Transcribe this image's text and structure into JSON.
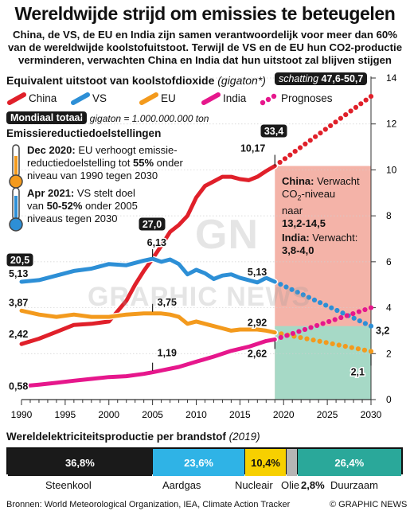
{
  "header": {
    "title": "Wereldwijde strijd om emissies te beteugelen",
    "subtitle_lines": [
      "China, de VS, de EU en India zijn samen verantwoordelijk voor meer dan 60%",
      "van de wereldwijde koolstofuitstoot. Terwijl de VS en de EU hun CO2-productie",
      "verminderen, verwachten China en India dat hun uitstoot zal blijven stijgen"
    ]
  },
  "chart_data": {
    "type": "line",
    "title": "Equivalent uitstoot van koolstofdioxide",
    "title_unit": "(gigaton*)",
    "note": "*1 gigaton = 1.000.000.000 ton",
    "world_total_label": "Mondiaal totaal",
    "estimate_label": "schatting",
    "estimate_value": "47,6-50,7",
    "xlim": [
      1990,
      2030
    ],
    "ylim": [
      0,
      14
    ],
    "x_ticks": [
      1990,
      1995,
      2000,
      2005,
      2010,
      2015,
      2020,
      2025,
      2030
    ],
    "y_ticks": [
      0,
      2,
      4,
      6,
      8,
      10,
      12,
      14
    ],
    "legend": [
      "China",
      "VS",
      "EU",
      "India",
      "Prognoses"
    ],
    "series": [
      {
        "name": "China",
        "color": "#e0202a",
        "x": [
          1990,
          1992,
          1994,
          1996,
          1998,
          2000,
          2002,
          2003,
          2004,
          2005,
          2006,
          2007,
          2008,
          2009,
          2010,
          2011,
          2012,
          2013,
          2014,
          2015,
          2016,
          2017,
          2018,
          2019
        ],
        "y": [
          2.42,
          2.65,
          2.95,
          3.25,
          3.3,
          3.4,
          4.3,
          5.0,
          5.6,
          6.13,
          6.7,
          7.3,
          7.6,
          8.0,
          8.8,
          9.3,
          9.5,
          9.7,
          9.7,
          9.6,
          9.55,
          9.7,
          9.95,
          10.17
        ]
      },
      {
        "name": "VS",
        "color": "#2d8fd6",
        "x": [
          1990,
          1992,
          1994,
          1996,
          1998,
          2000,
          2002,
          2004,
          2005,
          2006,
          2007,
          2008,
          2009,
          2010,
          2011,
          2012,
          2013,
          2014,
          2015,
          2016,
          2017,
          2018,
          2019
        ],
        "y": [
          5.13,
          5.2,
          5.4,
          5.6,
          5.7,
          5.9,
          5.85,
          6.05,
          6.13,
          6.0,
          6.1,
          5.9,
          5.45,
          5.65,
          5.5,
          5.25,
          5.4,
          5.45,
          5.3,
          5.2,
          5.1,
          5.3,
          5.13
        ]
      },
      {
        "name": "EU",
        "color": "#f39a1d",
        "x": [
          1990,
          1992,
          1994,
          1996,
          1998,
          2000,
          2002,
          2004,
          2005,
          2006,
          2007,
          2008,
          2009,
          2010,
          2011,
          2012,
          2013,
          2014,
          2015,
          2016,
          2017,
          2018,
          2019
        ],
        "y": [
          3.87,
          3.7,
          3.6,
          3.7,
          3.6,
          3.6,
          3.7,
          3.75,
          3.75,
          3.75,
          3.7,
          3.6,
          3.3,
          3.4,
          3.3,
          3.2,
          3.1,
          3.0,
          3.05,
          3.05,
          3.05,
          3.0,
          2.92
        ]
      },
      {
        "name": "India",
        "color": "#e6178c",
        "x": [
          1990,
          1992,
          1994,
          1996,
          1998,
          2000,
          2002,
          2004,
          2005,
          2006,
          2008,
          2010,
          2012,
          2014,
          2016,
          2018,
          2019
        ],
        "y": [
          0.58,
          0.65,
          0.73,
          0.82,
          0.9,
          0.98,
          1.02,
          1.12,
          1.19,
          1.27,
          1.42,
          1.65,
          1.87,
          2.12,
          2.3,
          2.55,
          2.62
        ]
      }
    ],
    "projections": [
      {
        "name": "China",
        "x": [
          2019,
          2030
        ],
        "y": [
          10.17,
          13.2
        ]
      },
      {
        "name": "VS",
        "x": [
          2019,
          2030
        ],
        "y": [
          5.13,
          3.2
        ]
      },
      {
        "name": "EU",
        "x": [
          2019,
          2030
        ],
        "y": [
          2.92,
          2.1
        ]
      },
      {
        "name": "India",
        "x": [
          2019,
          2030
        ],
        "y": [
          2.62,
          4.0
        ]
      }
    ],
    "world_totals": [
      {
        "x": 1990,
        "value": "20,5"
      },
      {
        "x": 2005,
        "value": "27,0"
      },
      {
        "x": 2019,
        "value": "33,4"
      }
    ],
    "value_labels": [
      {
        "series": "VS",
        "x": 1990,
        "text": "5,13"
      },
      {
        "series": "EU",
        "x": 1990,
        "text": "3,87"
      },
      {
        "series": "China",
        "x": 1990,
        "text": "2,42"
      },
      {
        "series": "India",
        "x": 1990,
        "text": "0,58"
      },
      {
        "series": "China",
        "x": 2005,
        "text": "6,13"
      },
      {
        "series": "EU",
        "x": 2005,
        "text": "3,75"
      },
      {
        "series": "India",
        "x": 2005,
        "text": "1,19"
      },
      {
        "series": "China",
        "x": 2019,
        "text": "10,17"
      },
      {
        "series": "VS",
        "x": 2019,
        "text": "5,13"
      },
      {
        "series": "EU",
        "x": 2019,
        "text": "2,92"
      },
      {
        "series": "India",
        "x": 2019,
        "text": "2,62"
      },
      {
        "series": "VS",
        "x": 2030,
        "text": "3,2"
      },
      {
        "series": "EU",
        "x": 2030,
        "text": "2,1"
      }
    ],
    "ranges": [
      {
        "name": "China",
        "color": "#f4b3a8",
        "x": [
          2019,
          2030
        ],
        "y": [
          0,
          10.17
        ]
      },
      {
        "name": "VS-EU",
        "color": "#a6d9c6",
        "x": [
          2019,
          2030
        ],
        "y": [
          0,
          3.2
        ]
      }
    ]
  },
  "targets": {
    "heading": "Emissiereductiedoelstellingen",
    "eu": {
      "date": "Dec 2020:",
      "lines": [
        "EU verhoogt emissie-",
        "reductiedoelstelling tot",
        "niveau van 1990 tegen 2030"
      ],
      "pct": "55%",
      "pct_suffix": "onder"
    },
    "us": {
      "date": "Apr 2021:",
      "line1": "VS stelt doel",
      "line2_pre": "van",
      "pct": "50-52%",
      "line2_post": "onder 2005",
      "line3": "niveaus tegen 2030"
    }
  },
  "annotations": {
    "china_title": "China:",
    "china_line1": "Verwacht",
    "china_line2a": "CO",
    "china_line2sub": "2",
    "china_line2b": "-niveau",
    "china_line3": "naar",
    "china_range": "13,2-14,5",
    "india_title": "India:",
    "india_line1": "Verwacht:",
    "india_range": "3,8-4,0"
  },
  "electricity": {
    "title": "Wereldelektriciteitsproductie per brandstof",
    "year": "(2019)",
    "segments": [
      {
        "name": "Steenkool",
        "pct_label": "36,8%",
        "value": 36.8,
        "color": "#1a1a1a",
        "text_color": "#ffffff"
      },
      {
        "name": "Aardgas",
        "pct_label": "23,6%",
        "value": 23.6,
        "color": "#2fb3e6",
        "text_color": "#ffffff"
      },
      {
        "name": "Nucleair",
        "pct_label": "10,4%",
        "value": 10.4,
        "color": "#f7d000",
        "text_color": "#111111"
      },
      {
        "name": "Olie",
        "pct_label": "2,8%",
        "value": 2.8,
        "color": "#b5b5b5",
        "text_color": "#111111"
      },
      {
        "name": "Duurzaam",
        "pct_label": "26,4%",
        "value": 26.4,
        "color": "#2aa89a",
        "text_color": "#ffffff"
      }
    ]
  },
  "footer": {
    "sources": "Bronnen: World Meteorological Organization, IEA, Climate Action Tracker",
    "copyright": "© GRAPHIC NEWS"
  },
  "watermark": {
    "logo": "GN",
    "text": "GRAPHIC NEWS"
  }
}
